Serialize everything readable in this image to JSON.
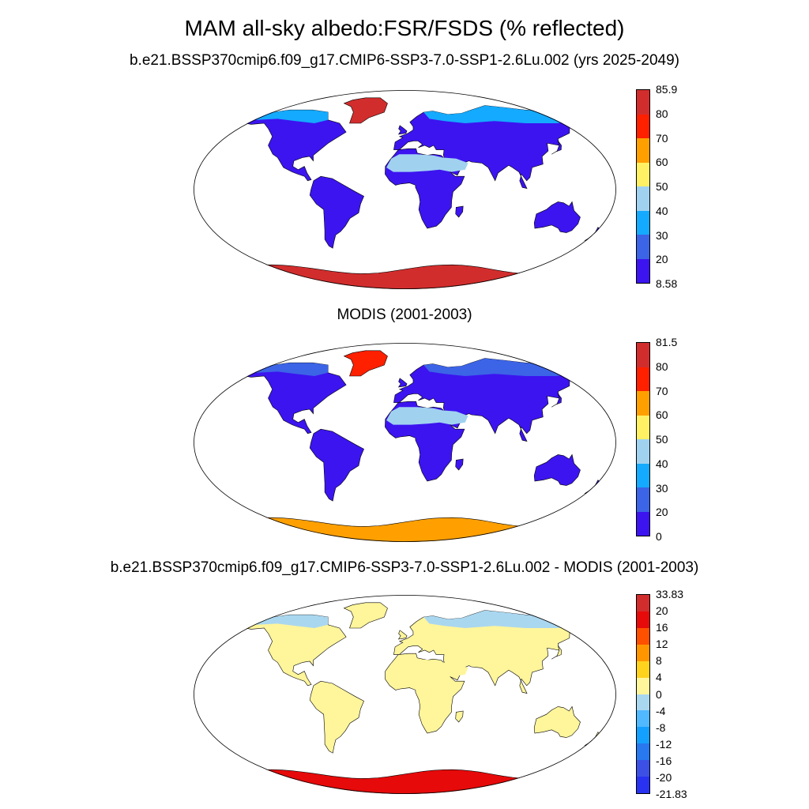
{
  "title": "MAM all-sky albedo:FSR/FSDS (% reflected)",
  "panels": [
    {
      "subtitle": "b.e21.BSSP370cmip6.f09_g17.CMIP6-SSP3-7.0-SSP1-2.6Lu.002 (yrs 2025-2049)",
      "colorbar": {
        "labels": [
          "85.9",
          "80",
          "70",
          "60",
          "50",
          "40",
          "30",
          "20",
          "8.58"
        ],
        "colors": [
          "#d22d2d",
          "#ff2000",
          "#ffa000",
          "#fff064",
          "#a0d2f0",
          "#14aaff",
          "#3c64e6",
          "#3c14f0"
        ]
      },
      "land_color": "#3c14f0",
      "antarctic_color": "#d22d2d",
      "greenland_color": "#d22d2d",
      "north_color": "#14aaff",
      "sahara_color": "#a0d2f0"
    },
    {
      "subtitle": "MODIS (2001-2003)",
      "colorbar": {
        "labels": [
          "81.5",
          "80",
          "70",
          "60",
          "50",
          "40",
          "30",
          "20",
          "0"
        ],
        "colors": [
          "#d22d2d",
          "#ff2000",
          "#ffa000",
          "#fff064",
          "#a0d2f0",
          "#14aaff",
          "#3c64e6",
          "#3c14f0"
        ]
      },
      "land_color": "#3c14f0",
      "antarctic_color": "#ffa000",
      "greenland_color": "#ff2000",
      "north_color": "#3c64e6",
      "sahara_color": "#a0d2f0"
    },
    {
      "subtitle": "b.e21.BSSP370cmip6.f09_g17.CMIP6-SSP3-7.0-SSP1-2.6Lu.002 - MODIS (2001-2003)",
      "colorbar": {
        "labels": [
          "33.83",
          "20",
          "16",
          "12",
          "8",
          "4",
          "0",
          "-4",
          "-8",
          "-12",
          "-16",
          "-20",
          "-21.83"
        ],
        "colors": [
          "#d22d2d",
          "#e60a0a",
          "#ff5000",
          "#ff9600",
          "#ffd21e",
          "#fff59b",
          "#aad7f0",
          "#50b9ff",
          "#14a0ff",
          "#2878f0",
          "#3c50e6",
          "#2832f0"
        ]
      },
      "land_color": "#fff59b",
      "antarctic_color": "#e60a0a",
      "greenland_color": "#fff59b",
      "north_color": "#aad7f0",
      "sahara_color": "#fff59b"
    }
  ]
}
